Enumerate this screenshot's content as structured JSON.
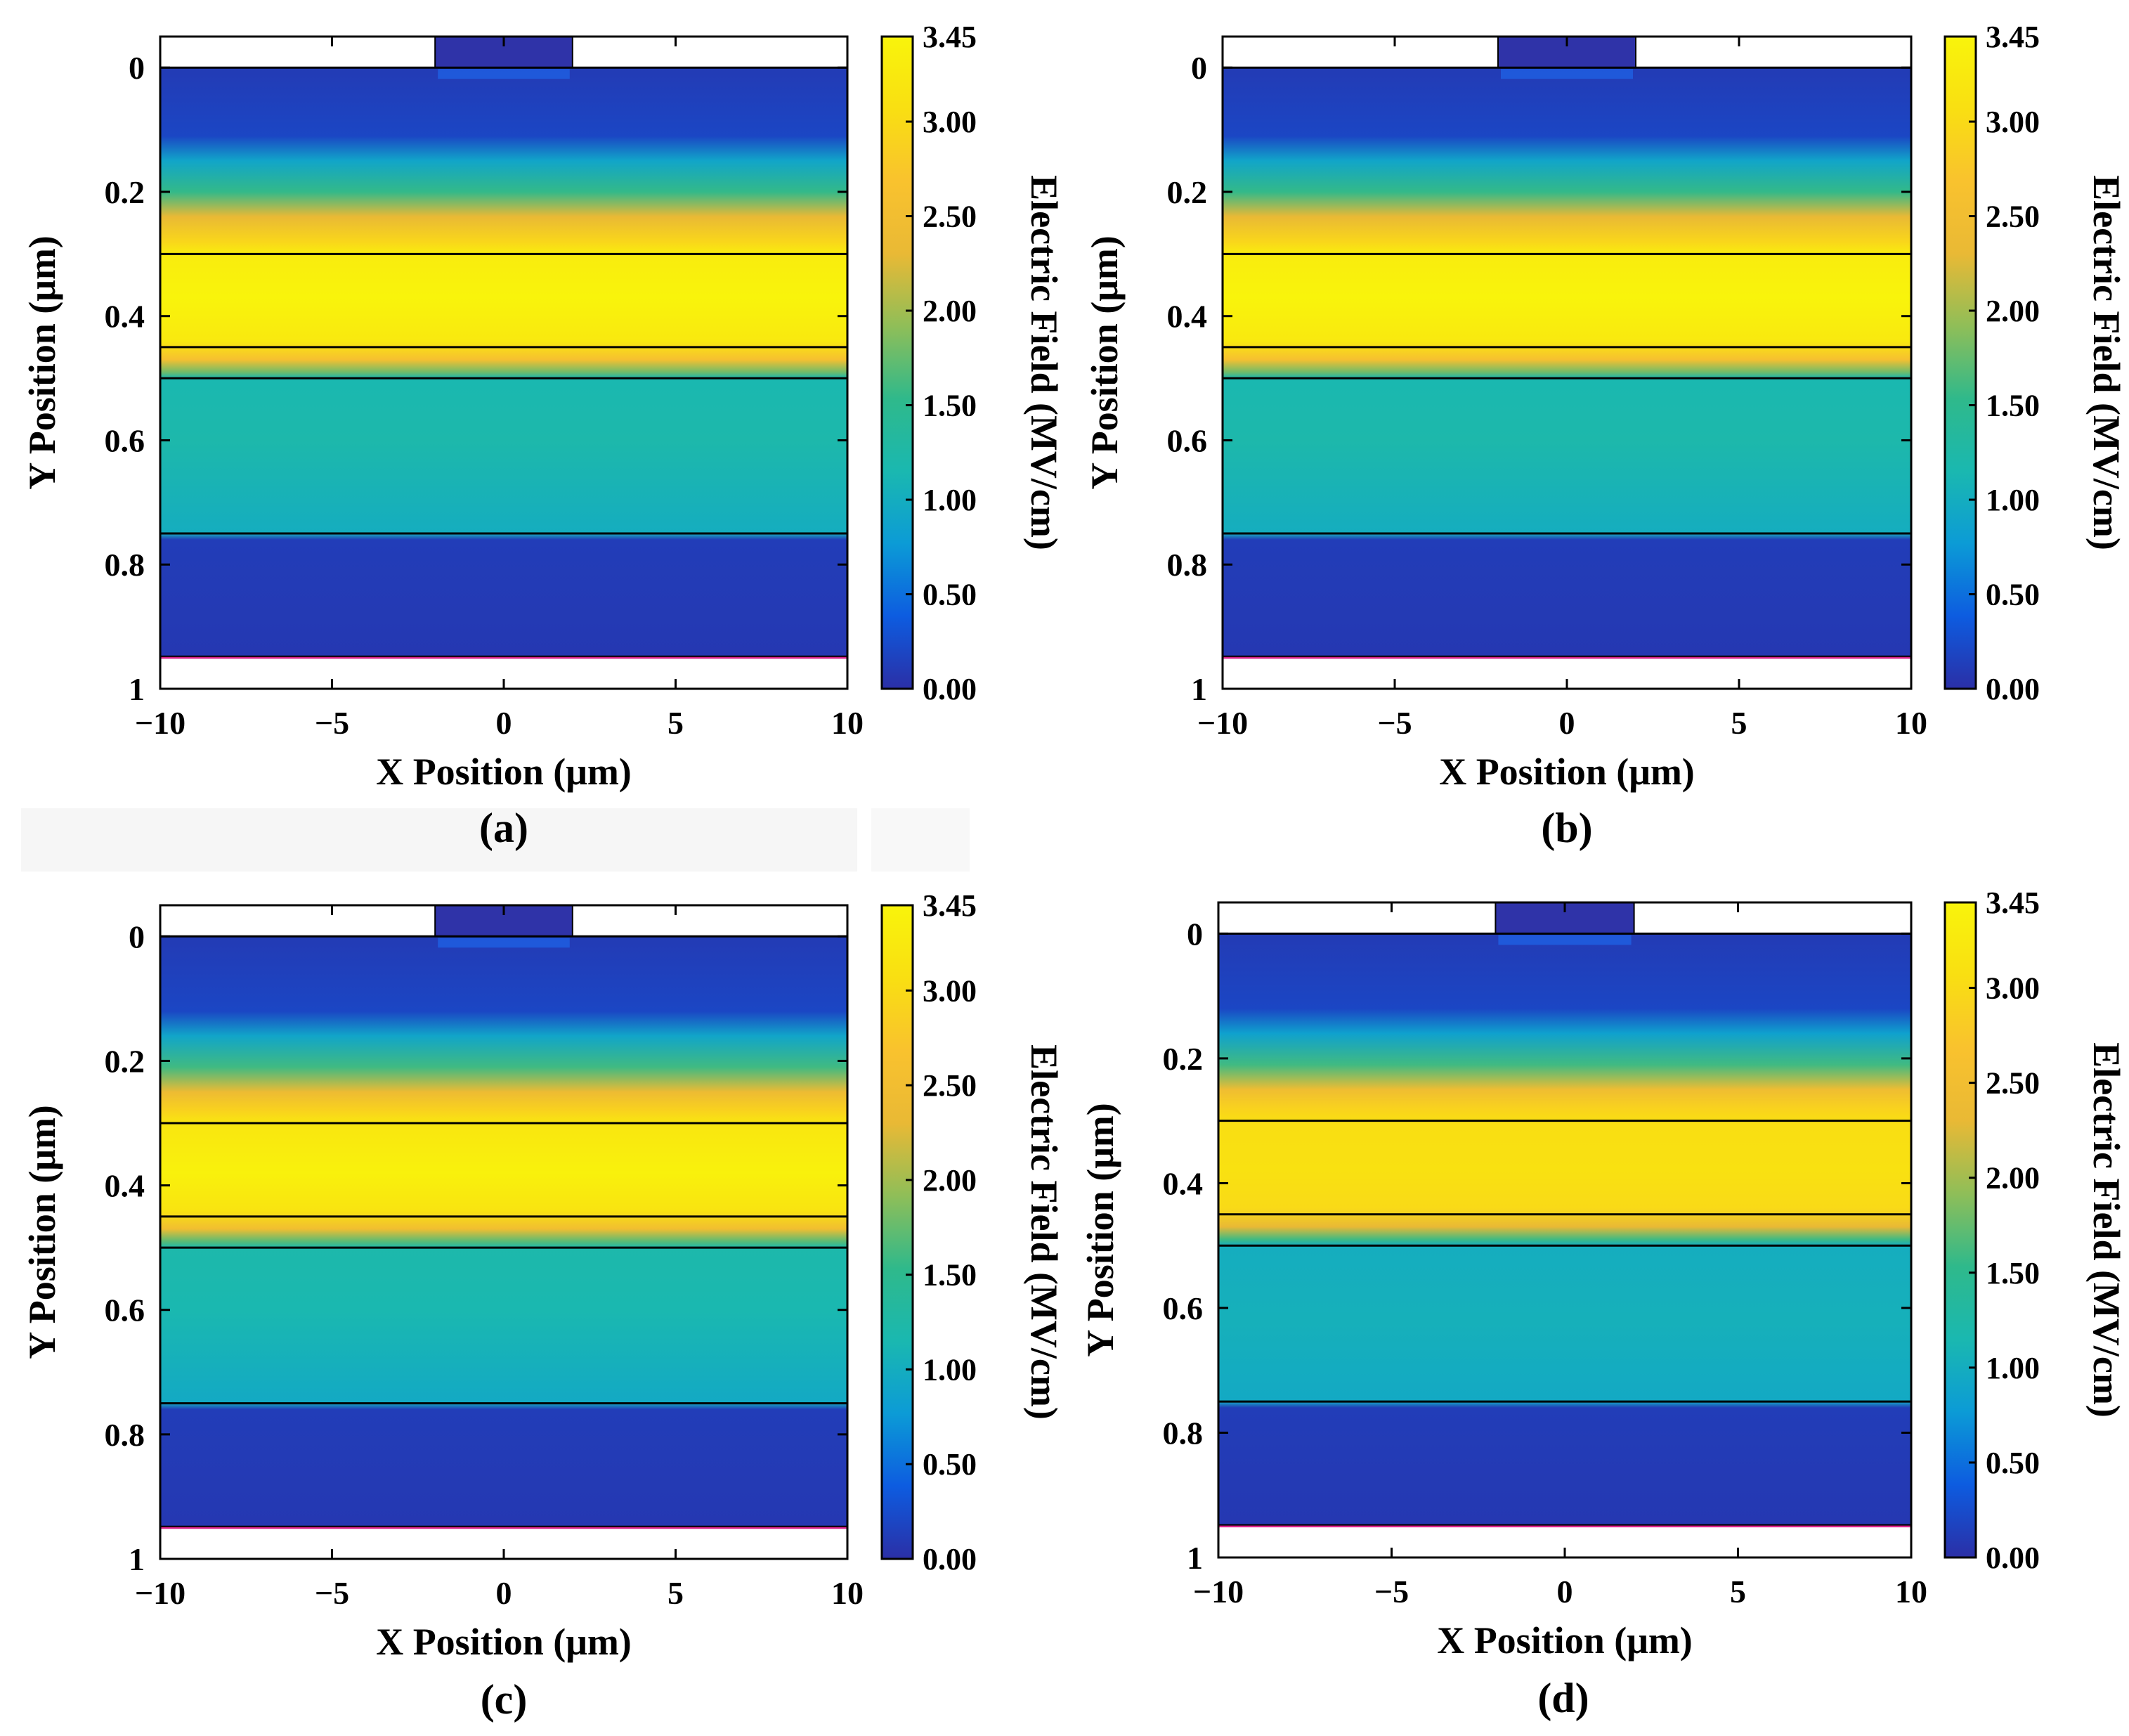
{
  "colormap": [
    "#2b2fa6",
    "#0d5ce0",
    "#0c9bd6",
    "#1ab8b0",
    "#2fb98b",
    "#8fbe58",
    "#e9b935",
    "#f9c22e",
    "#f9df12",
    "#f9f40b"
  ],
  "colors": {
    "gate": "#2f33a8",
    "substrate_bottom": "#d9248c",
    "axis": "#000000"
  },
  "chart_data": [
    {
      "type": "heatmap",
      "panel_label": "(a)",
      "xlabel": "X Position (μm)",
      "ylabel": "Y Position (μm)",
      "xlim": [
        -10,
        10
      ],
      "ylim": [
        1,
        -0.05
      ],
      "xticks": [
        -10,
        -5,
        0,
        5,
        10
      ],
      "xtick_labels": [
        "−10",
        "−5",
        "0",
        "5",
        "10"
      ],
      "yticks": [
        0,
        0.2,
        0.4,
        0.6,
        0.8,
        1
      ],
      "ytick_labels": [
        "0",
        "0.2",
        "0.4",
        "0.6",
        "0.8",
        "1"
      ],
      "gate_x_range": [
        -2,
        2
      ],
      "layer_boundaries_y": [
        0,
        0.3,
        0.45,
        0.5,
        0.75,
        0.95
      ],
      "field_profile_MVcm": [
        {
          "y": 0.0,
          "v": 0.1
        },
        {
          "y": 0.11,
          "v": 0.2
        },
        {
          "y": 0.15,
          "v": 0.9
        },
        {
          "y": 0.2,
          "v": 1.55
        },
        {
          "y": 0.24,
          "v": 2.3
        },
        {
          "y": 0.28,
          "v": 2.95
        },
        {
          "y": 0.3,
          "v": 3.3
        },
        {
          "y": 0.37,
          "v": 3.45
        },
        {
          "y": 0.44,
          "v": 3.25
        },
        {
          "y": 0.47,
          "v": 2.6
        },
        {
          "y": 0.49,
          "v": 1.8
        },
        {
          "y": 0.5,
          "v": 1.15
        },
        {
          "y": 0.6,
          "v": 1.2
        },
        {
          "y": 0.75,
          "v": 1.0
        },
        {
          "y": 0.76,
          "v": 0.12
        },
        {
          "y": 0.95,
          "v": 0.08
        }
      ],
      "colorbar": {
        "label": "Electric Field  (MV/cm)",
        "range": [
          0.0,
          3.45
        ],
        "tick_values": [
          0.0,
          0.5,
          1.0,
          1.5,
          2.0,
          2.5,
          3.0,
          3.45
        ],
        "tick_labels": [
          "0.00",
          "0.50",
          "1.00",
          "1.50",
          "2.00",
          "2.50",
          "3.00",
          "3.45"
        ]
      }
    },
    {
      "type": "heatmap",
      "panel_label": "(b)",
      "xlabel": "X Position (μm)",
      "ylabel": "Y Position (μm)",
      "xlim": [
        -10,
        10
      ],
      "ylim": [
        1,
        -0.05
      ],
      "xticks": [
        -10,
        -5,
        0,
        5,
        10
      ],
      "xtick_labels": [
        "−10",
        "−5",
        "0",
        "5",
        "10"
      ],
      "yticks": [
        0,
        0.2,
        0.4,
        0.6,
        0.8,
        1
      ],
      "ytick_labels": [
        "0",
        "0.2",
        "0.4",
        "0.6",
        "0.8",
        "1"
      ],
      "gate_x_range": [
        -2,
        2
      ],
      "layer_boundaries_y": [
        0,
        0.3,
        0.45,
        0.5,
        0.75,
        0.95
      ],
      "field_profile_MVcm": [
        {
          "y": 0.0,
          "v": 0.1
        },
        {
          "y": 0.11,
          "v": 0.2
        },
        {
          "y": 0.15,
          "v": 0.9
        },
        {
          "y": 0.2,
          "v": 1.55
        },
        {
          "y": 0.24,
          "v": 2.3
        },
        {
          "y": 0.28,
          "v": 2.95
        },
        {
          "y": 0.3,
          "v": 3.3
        },
        {
          "y": 0.37,
          "v": 3.45
        },
        {
          "y": 0.44,
          "v": 3.25
        },
        {
          "y": 0.47,
          "v": 2.6
        },
        {
          "y": 0.49,
          "v": 1.8
        },
        {
          "y": 0.5,
          "v": 1.15
        },
        {
          "y": 0.6,
          "v": 1.2
        },
        {
          "y": 0.75,
          "v": 1.0
        },
        {
          "y": 0.76,
          "v": 0.12
        },
        {
          "y": 0.95,
          "v": 0.08
        }
      ],
      "colorbar": {
        "label": "Electric Field  (MV/cm)",
        "range": [
          0.0,
          3.45
        ],
        "tick_values": [
          0.0,
          0.5,
          1.0,
          1.5,
          2.0,
          2.5,
          3.0,
          3.45
        ],
        "tick_labels": [
          "0.00",
          "0.50",
          "1.00",
          "1.50",
          "2.00",
          "2.50",
          "3.00",
          "3.45"
        ]
      }
    },
    {
      "type": "heatmap",
      "panel_label": "(c)",
      "xlabel": "X Position (μm)",
      "ylabel": "Y Position (μm)",
      "xlim": [
        -10,
        10
      ],
      "ylim": [
        1,
        -0.05
      ],
      "xticks": [
        -10,
        -5,
        0,
        5,
        10
      ],
      "xtick_labels": [
        "−10",
        "−5",
        "0",
        "5",
        "10"
      ],
      "yticks": [
        0,
        0.2,
        0.4,
        0.6,
        0.8,
        1
      ],
      "ytick_labels": [
        "0",
        "0.2",
        "0.4",
        "0.6",
        "0.8",
        "1"
      ],
      "gate_x_range": [
        -2,
        2
      ],
      "layer_boundaries_y": [
        0,
        0.3,
        0.45,
        0.5,
        0.75,
        0.95
      ],
      "field_profile_MVcm": [
        {
          "y": 0.0,
          "v": 0.1
        },
        {
          "y": 0.12,
          "v": 0.2
        },
        {
          "y": 0.16,
          "v": 0.9
        },
        {
          "y": 0.21,
          "v": 1.6
        },
        {
          "y": 0.25,
          "v": 2.4
        },
        {
          "y": 0.28,
          "v": 2.9
        },
        {
          "y": 0.3,
          "v": 3.2
        },
        {
          "y": 0.38,
          "v": 3.4
        },
        {
          "y": 0.44,
          "v": 3.15
        },
        {
          "y": 0.47,
          "v": 2.5
        },
        {
          "y": 0.49,
          "v": 1.7
        },
        {
          "y": 0.5,
          "v": 1.2
        },
        {
          "y": 0.6,
          "v": 1.15
        },
        {
          "y": 0.75,
          "v": 0.95
        },
        {
          "y": 0.76,
          "v": 0.12
        },
        {
          "y": 0.95,
          "v": 0.08
        }
      ],
      "colorbar": {
        "label": "Electric Field  (MV/cm)",
        "range": [
          0.0,
          3.45
        ],
        "tick_values": [
          0.0,
          0.5,
          1.0,
          1.5,
          2.0,
          2.5,
          3.0,
          3.45
        ],
        "tick_labels": [
          "0.00",
          "0.50",
          "1.00",
          "1.50",
          "2.00",
          "2.50",
          "3.00",
          "3.45"
        ]
      }
    },
    {
      "type": "heatmap",
      "panel_label": "(d)",
      "xlabel": "X Position (μm)",
      "ylabel": "Y Position (μm)",
      "xlim": [
        -10,
        10
      ],
      "ylim": [
        1,
        -0.05
      ],
      "xticks": [
        -10,
        -5,
        0,
        5,
        10
      ],
      "xtick_labels": [
        "−10",
        "−5",
        "0",
        "5",
        "10"
      ],
      "yticks": [
        0,
        0.2,
        0.4,
        0.6,
        0.8,
        1
      ],
      "ytick_labels": [
        "0",
        "0.2",
        "0.4",
        "0.6",
        "0.8",
        "1"
      ],
      "gate_x_range": [
        -2,
        2
      ],
      "layer_boundaries_y": [
        0,
        0.3,
        0.45,
        0.5,
        0.75,
        0.95
      ],
      "field_profile_MVcm": [
        {
          "y": 0.0,
          "v": 0.1
        },
        {
          "y": 0.12,
          "v": 0.2
        },
        {
          "y": 0.16,
          "v": 0.85
        },
        {
          "y": 0.21,
          "v": 1.6
        },
        {
          "y": 0.25,
          "v": 2.45
        },
        {
          "y": 0.28,
          "v": 2.9
        },
        {
          "y": 0.3,
          "v": 3.05
        },
        {
          "y": 0.38,
          "v": 3.1
        },
        {
          "y": 0.44,
          "v": 3.0
        },
        {
          "y": 0.47,
          "v": 2.3
        },
        {
          "y": 0.49,
          "v": 1.6
        },
        {
          "y": 0.5,
          "v": 1.0
        },
        {
          "y": 0.62,
          "v": 1.05
        },
        {
          "y": 0.75,
          "v": 0.95
        },
        {
          "y": 0.76,
          "v": 0.12
        },
        {
          "y": 0.95,
          "v": 0.08
        }
      ],
      "colorbar": {
        "label": "Electric Field  (MV/cm)",
        "range": [
          0.0,
          3.45
        ],
        "tick_values": [
          0.0,
          0.5,
          1.0,
          1.5,
          2.0,
          2.5,
          3.0,
          3.45
        ],
        "tick_labels": [
          "0.00",
          "0.50",
          "1.00",
          "1.50",
          "2.00",
          "2.50",
          "3.00",
          "3.45"
        ]
      }
    }
  ]
}
